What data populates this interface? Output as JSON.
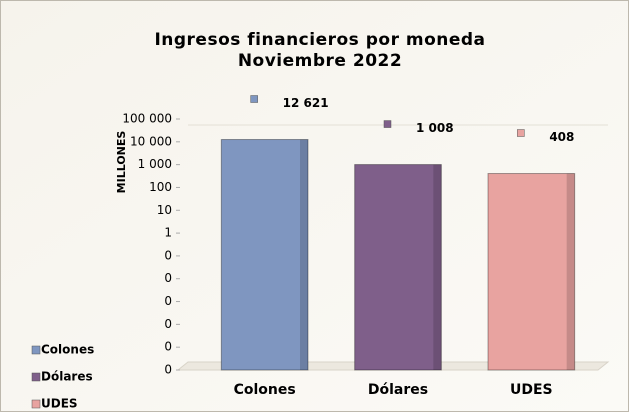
{
  "chart_data": {
    "type": "bar",
    "title": "Ingresos financieros por moneda",
    "subtitle": "Noviembre 2022",
    "y_label": "MILLONES",
    "categories": [
      "Colones",
      "Dólares",
      "UDES"
    ],
    "values": [
      12621,
      1008,
      408
    ],
    "value_labels": [
      "12 621",
      "1 008",
      "408"
    ],
    "colors": [
      "#7f96c0",
      "#7f5f8a",
      "#e8a3a0"
    ],
    "log_scale": true,
    "ylim": [
      1e-06,
      100000
    ],
    "yticks": [
      {
        "value": 100000,
        "label": "100 000"
      },
      {
        "value": 10000,
        "label": "10 000"
      },
      {
        "value": 1000,
        "label": "1 000"
      },
      100,
      10,
      1,
      {
        "value": 0.1,
        "label": "0"
      },
      {
        "value": 0.01,
        "label": "0"
      },
      {
        "value": 0.001,
        "label": "0"
      },
      {
        "value": 0.0001,
        "label": "0"
      },
      {
        "value": 1e-05,
        "label": "0"
      },
      {
        "value": 1e-06,
        "label": "0"
      }
    ],
    "legend": "bottom-left"
  }
}
